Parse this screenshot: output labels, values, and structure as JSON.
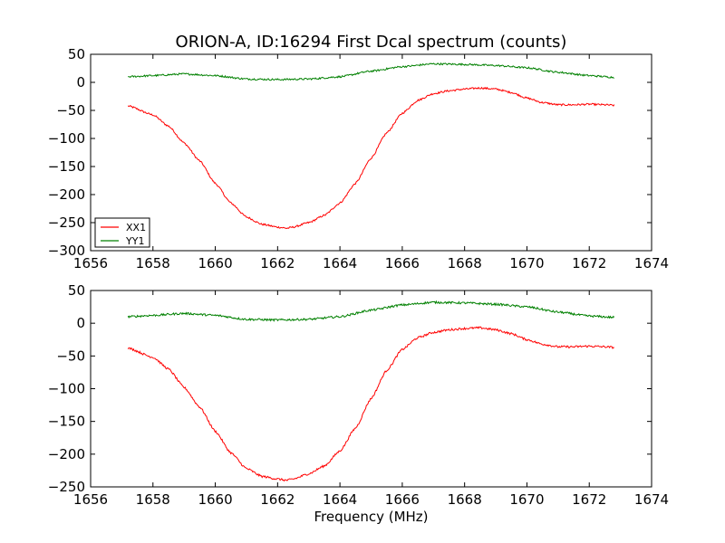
{
  "chart_data": [
    {
      "type": "line",
      "title": "ORION-A, ID:16294 First Dcal spectrum (counts)",
      "xlabel": "",
      "ylabel": "",
      "xlim": [
        1656,
        1674
      ],
      "ylim": [
        -300,
        50
      ],
      "xticks": [
        1656,
        1658,
        1660,
        1662,
        1664,
        1666,
        1668,
        1670,
        1672,
        1674
      ],
      "yticks": [
        -300,
        -250,
        -200,
        -150,
        -100,
        -50,
        0,
        50
      ],
      "grid": false,
      "legend": "lower-left",
      "series": [
        {
          "name": "XX1",
          "color": "#ff0000",
          "x": [
            1657.2,
            1658.0,
            1658.5,
            1659.0,
            1659.5,
            1660.0,
            1660.5,
            1661.0,
            1661.5,
            1662.0,
            1662.3,
            1662.5,
            1663.0,
            1663.5,
            1664.0,
            1664.5,
            1665.0,
            1665.5,
            1666.0,
            1666.5,
            1667.0,
            1667.5,
            1668.0,
            1668.5,
            1669.0,
            1669.5,
            1670.0,
            1670.5,
            1671.0,
            1671.5,
            1672.0,
            1672.5,
            1672.8
          ],
          "y": [
            -42,
            -58,
            -78,
            -108,
            -140,
            -180,
            -215,
            -240,
            -253,
            -258,
            -260,
            -258,
            -250,
            -237,
            -215,
            -180,
            -135,
            -90,
            -55,
            -32,
            -20,
            -15,
            -12,
            -10,
            -12,
            -18,
            -28,
            -36,
            -40,
            -40,
            -39,
            -40,
            -41
          ]
        },
        {
          "name": "YY1",
          "color": "#008000",
          "x": [
            1657.2,
            1658.0,
            1659.0,
            1660.0,
            1661.0,
            1662.0,
            1663.0,
            1664.0,
            1665.0,
            1666.0,
            1667.0,
            1668.0,
            1669.0,
            1670.0,
            1671.0,
            1672.0,
            1672.8
          ],
          "y": [
            10,
            12,
            15,
            12,
            6,
            5,
            6,
            10,
            20,
            28,
            33,
            32,
            30,
            26,
            18,
            12,
            9
          ]
        }
      ]
    },
    {
      "type": "line",
      "title": "",
      "xlabel": "Frequency (MHz)",
      "ylabel": "",
      "xlim": [
        1656,
        1674
      ],
      "ylim": [
        -250,
        50
      ],
      "xticks": [
        1656,
        1658,
        1660,
        1662,
        1664,
        1666,
        1668,
        1670,
        1672,
        1674
      ],
      "yticks": [
        -250,
        -200,
        -150,
        -100,
        -50,
        0,
        50
      ],
      "grid": false,
      "series": [
        {
          "color": "#ff0000",
          "x": [
            1657.2,
            1658.0,
            1658.5,
            1659.0,
            1659.5,
            1660.0,
            1660.5,
            1661.0,
            1661.5,
            1662.0,
            1662.3,
            1662.5,
            1663.0,
            1663.5,
            1664.0,
            1664.5,
            1665.0,
            1665.5,
            1666.0,
            1666.5,
            1667.0,
            1667.5,
            1668.0,
            1668.5,
            1669.0,
            1669.5,
            1670.0,
            1670.5,
            1671.0,
            1671.5,
            1672.0,
            1672.5,
            1672.8
          ],
          "y": [
            -38,
            -52,
            -70,
            -98,
            -128,
            -165,
            -198,
            -222,
            -234,
            -238,
            -240,
            -238,
            -230,
            -218,
            -195,
            -160,
            -115,
            -72,
            -40,
            -22,
            -14,
            -10,
            -8,
            -7,
            -10,
            -16,
            -25,
            -32,
            -36,
            -36,
            -35,
            -36,
            -37
          ]
        },
        {
          "color": "#008000",
          "x": [
            1657.2,
            1658.0,
            1659.0,
            1660.0,
            1661.0,
            1662.0,
            1663.0,
            1664.0,
            1665.0,
            1666.0,
            1667.0,
            1668.0,
            1669.0,
            1670.0,
            1671.0,
            1672.0,
            1672.8
          ],
          "y": [
            10,
            12,
            15,
            12,
            6,
            5,
            6,
            10,
            20,
            28,
            32,
            31,
            29,
            25,
            17,
            11,
            9
          ]
        }
      ]
    }
  ]
}
